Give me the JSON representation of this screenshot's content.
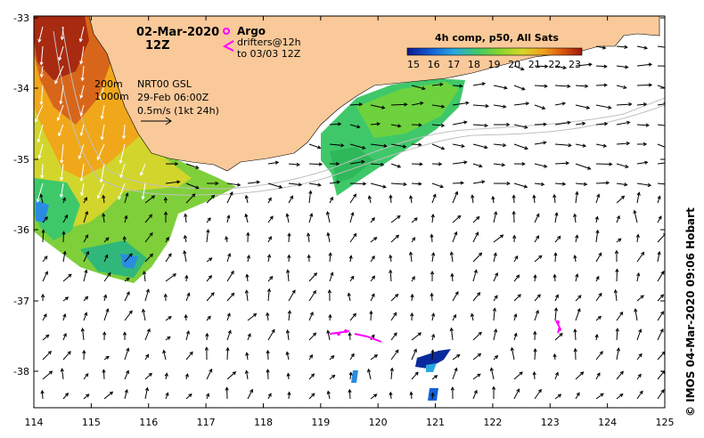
{
  "header": {
    "date": "02-Mar-2020",
    "time": "12Z",
    "argo_label": "Argo",
    "drifters_line1": "drifters@12h",
    "drifters_line2": "to 03/03 12Z"
  },
  "info": {
    "depth_200": "200m",
    "depth_1000": "1000m",
    "product": "NRT00 GSL",
    "product_time": "29-Feb 06:00Z",
    "scale_text": "0.5m/s (1kt 24h)"
  },
  "colorbar": {
    "title": "4h comp, p50, All Sats",
    "ticks": [
      "15",
      "16",
      "17",
      "18",
      "19",
      "20",
      "21",
      "22",
      "23"
    ],
    "colors": [
      "#0a1a8c",
      "#1560d8",
      "#2aa8e0",
      "#3fc86a",
      "#8ad62a",
      "#d6d62a",
      "#f0a018",
      "#d85010",
      "#9a1808"
    ]
  },
  "axes": {
    "x_ticks": [
      "114",
      "115",
      "116",
      "117",
      "118",
      "119",
      "120",
      "121",
      "122",
      "123",
      "124",
      "125"
    ],
    "y_ticks": [
      "-33",
      "-34",
      "-35",
      "-36",
      "-37",
      "-38"
    ]
  },
  "credit": "© IMOS 04-Mar-2020 09:06 Hobart",
  "colors": {
    "land": "#f9c99a",
    "argo": "#ff00ff",
    "drifters": "#ff00ff"
  }
}
